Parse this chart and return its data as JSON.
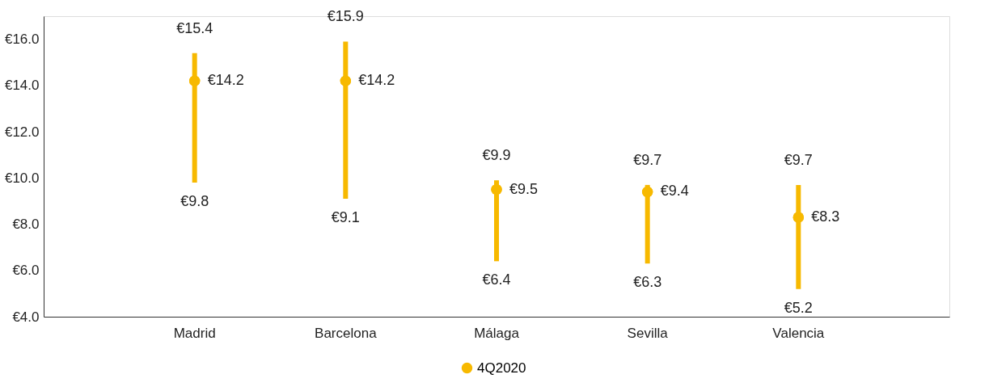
{
  "chart_data": {
    "type": "scatter",
    "categories": [
      "Madrid",
      "Barcelona",
      "Málaga",
      "Sevilla",
      "Valencia"
    ],
    "series": [
      {
        "name": "4Q2020",
        "color": "#f7b900",
        "values": [
          14.2,
          14.2,
          9.5,
          9.4,
          8.3
        ],
        "errors": [
          [
            9.8,
            15.4
          ],
          [
            9.1,
            15.9
          ],
          [
            6.4,
            9.9
          ],
          [
            6.3,
            9.7
          ],
          [
            5.2,
            9.7
          ]
        ],
        "value_labels": [
          "€14.2",
          "€14.2",
          "€9.5",
          "€9.4",
          "€8.3"
        ]
      }
    ],
    "annotations": [
      "€15.4",
      "€9.8",
      "€15.9",
      "€9.1",
      "€9.9",
      "€6.4",
      "€9.7",
      "€6.3",
      "€9.7",
      "€5.2"
    ],
    "ylim": [
      4,
      17
    ],
    "yticks": [
      {
        "value": 4,
        "label": "€4.0"
      },
      {
        "value": 6,
        "label": "€6.0"
      },
      {
        "value": 8,
        "label": "€8.0"
      },
      {
        "value": 10,
        "label": "€10.0"
      },
      {
        "value": 12,
        "label": "€12.0"
      },
      {
        "value": 14,
        "label": "€14.0"
      },
      {
        "value": 16,
        "label": "€16.0"
      }
    ],
    "grid": false,
    "legend": "bottom",
    "marker": "circle"
  }
}
